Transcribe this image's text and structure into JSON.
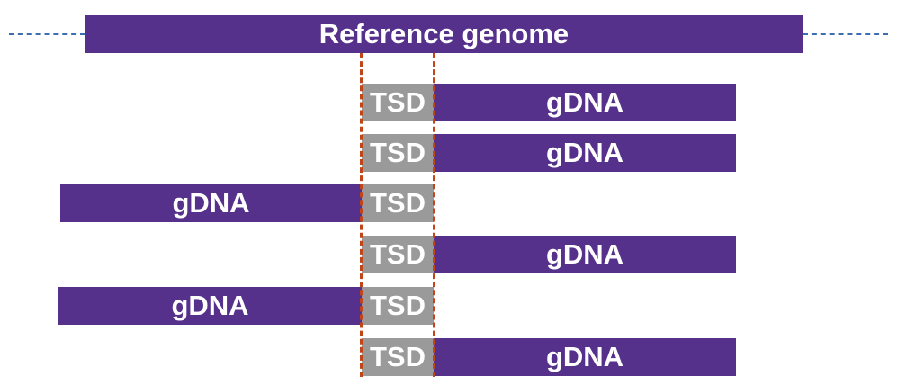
{
  "reference": {
    "label": "Reference genome"
  },
  "colors": {
    "genome": "#56318c",
    "tsd": "#9a9a9a",
    "guide": "#c0461a",
    "flank": "#3d6fb0",
    "text": "#ffffff"
  },
  "rows": [
    {
      "tsd_label": "TSD",
      "gdna_label": "gDNA",
      "gdna_side": "right"
    },
    {
      "tsd_label": "TSD",
      "gdna_label": "gDNA",
      "gdna_side": "right"
    },
    {
      "tsd_label": "TSD",
      "gdna_label": "gDNA",
      "gdna_side": "left"
    },
    {
      "tsd_label": "TSD",
      "gdna_label": "gDNA",
      "gdna_side": "right"
    },
    {
      "tsd_label": "TSD",
      "gdna_label": "gDNA",
      "gdna_side": "left"
    },
    {
      "tsd_label": "TSD",
      "gdna_label": "gDNA",
      "gdna_side": "right"
    }
  ]
}
